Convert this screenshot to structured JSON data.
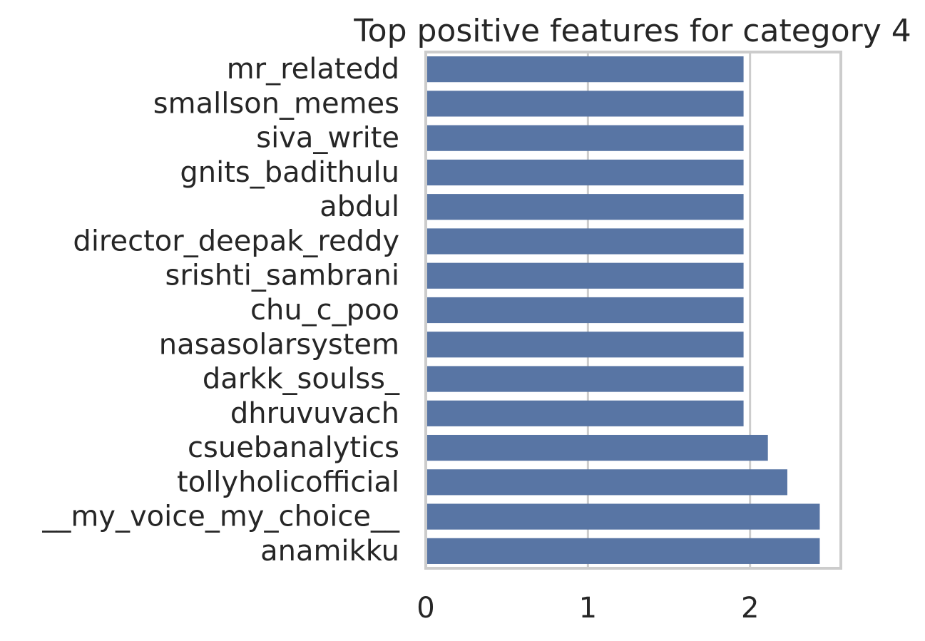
{
  "chart_data": {
    "type": "bar",
    "orientation": "horizontal",
    "title": "Top positive features for category 4",
    "xlabel": "",
    "ylabel": "",
    "categories": [
      "mr_relatedd",
      "smallson_memes",
      "siva_write",
      "gnits_badithulu",
      "abdul",
      "director_deepak_reddy",
      "srishti_sambrani",
      "chu_c_poo",
      "nasasolarsystem",
      "darkk_soulss_",
      "dhruvuvach",
      "csuebanalytics",
      "tollyholicofficial",
      "__my_voice_my_choice__",
      "anamikku"
    ],
    "values": [
      1.96,
      1.96,
      1.96,
      1.96,
      1.96,
      1.96,
      1.96,
      1.96,
      1.96,
      1.96,
      1.96,
      2.11,
      2.23,
      2.43,
      2.43
    ],
    "xlim": [
      0,
      2.56
    ],
    "xticks": [
      0,
      1,
      2
    ],
    "xtick_labels": [
      "0",
      "1",
      "2"
    ],
    "grid": "vertical",
    "legend": "none",
    "bar_color": "#5875a4",
    "grid_color": "#cccccc",
    "spine_color": "#cccccc"
  }
}
